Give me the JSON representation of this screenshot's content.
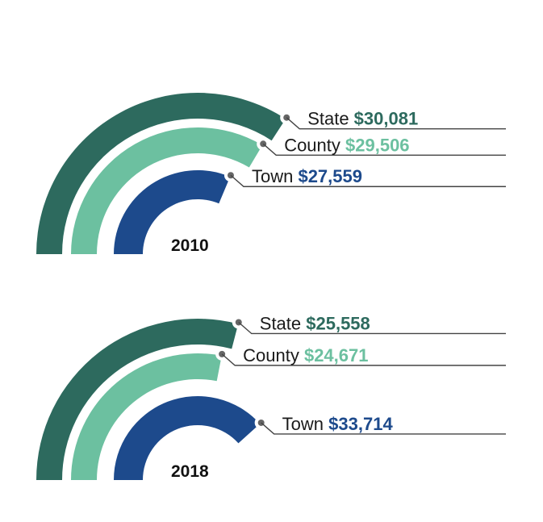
{
  "colors": {
    "state": "#2d6a5e",
    "county": "#6cc0a0",
    "town": "#1d4a8c"
  },
  "chart_data": [
    {
      "type": "radial-bar",
      "title": "2010",
      "series": [
        {
          "name": "State",
          "value": 30081,
          "label": "$30,081"
        },
        {
          "name": "County",
          "value": 29506,
          "label": "$29,506"
        },
        {
          "name": "Town",
          "value": 27559,
          "label": "$27,559"
        }
      ]
    },
    {
      "type": "radial-bar",
      "title": "2018",
      "series": [
        {
          "name": "State",
          "value": 25558,
          "label": "$25,558"
        },
        {
          "name": "County",
          "value": 24671,
          "label": "$24,671"
        },
        {
          "name": "Town",
          "value": 33714,
          "label": "$33,714"
        }
      ]
    }
  ]
}
